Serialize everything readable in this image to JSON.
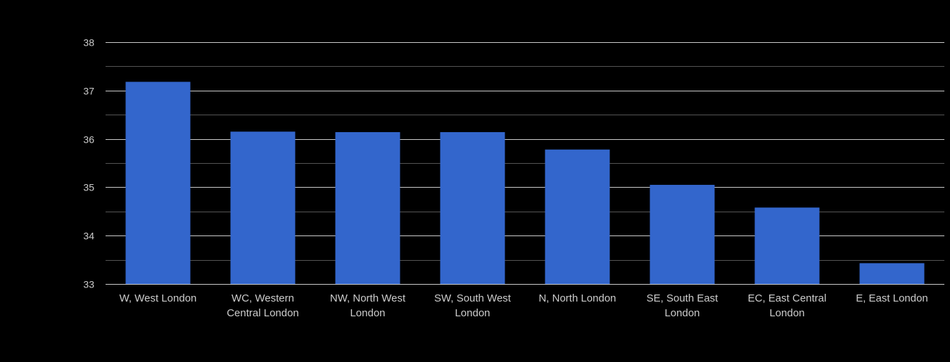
{
  "chart_data": {
    "type": "bar",
    "title": "",
    "xlabel": "",
    "ylabel": "",
    "categories": [
      [
        "W, West London"
      ],
      [
        "WC, Western",
        "Central London"
      ],
      [
        "NW, North West",
        "London"
      ],
      [
        "SW, South West",
        "London"
      ],
      [
        "N, North London"
      ],
      [
        "SE, South East",
        "London"
      ],
      [
        "EC, East Central",
        "London"
      ],
      [
        "E, East London"
      ]
    ],
    "values": [
      37.18,
      36.15,
      36.14,
      36.14,
      35.78,
      35.05,
      34.58,
      33.43
    ],
    "ylim": [
      33,
      38
    ],
    "yticks": [
      "33",
      "34",
      "35",
      "36",
      "37",
      "38"
    ],
    "minor_gridlines": true,
    "grid": true,
    "legend": "none"
  },
  "colors": {
    "background": "#000000",
    "bar": "#3366cc",
    "major_grid": "#cccccc",
    "minor_grid": "#555555",
    "tick_text": "#cccccc",
    "baseline": "#cccccc"
  }
}
